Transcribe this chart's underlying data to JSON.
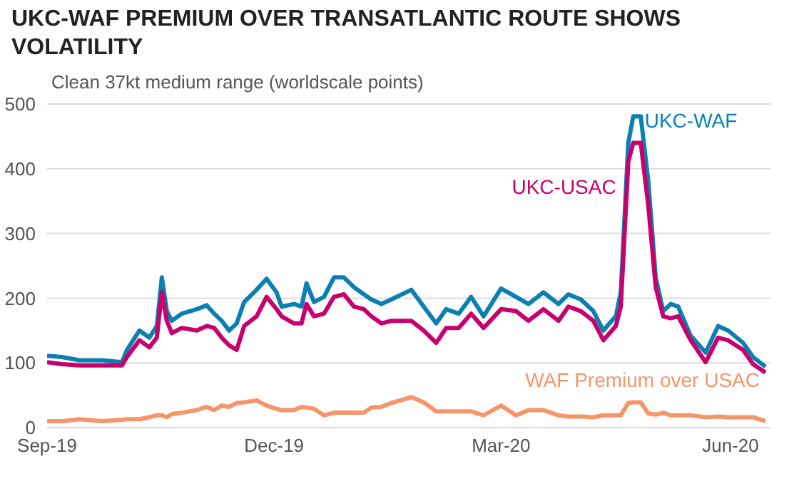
{
  "chart_data": {
    "type": "line",
    "title": "UKC-WAF PREMIUM OVER TRANSATLANTIC ROUTE SHOWS VOLATILITY",
    "subtitle": "Clean 37kt medium range (worldscale points)",
    "x": [
      "2019-09-01",
      "2019-09-07",
      "2019-09-14",
      "2019-09-23",
      "2019-10-01",
      "2019-10-03",
      "2019-10-08",
      "2019-10-12",
      "2019-10-15",
      "2019-10-17",
      "2019-10-19",
      "2019-10-21",
      "2019-10-25",
      "2019-10-31",
      "2019-11-04",
      "2019-11-07",
      "2019-11-10",
      "2019-11-13",
      "2019-11-16",
      "2019-11-19",
      "2019-11-24",
      "2019-11-28",
      "2019-12-02",
      "2019-12-04",
      "2019-12-09",
      "2019-12-12",
      "2019-12-14",
      "2019-12-17",
      "2019-12-21",
      "2019-12-25",
      "2019-12-29",
      "2020-01-02",
      "2020-01-06",
      "2020-01-09",
      "2020-01-13",
      "2020-01-17",
      "2020-01-25",
      "2020-01-30",
      "2020-02-04",
      "2020-02-08",
      "2020-02-13",
      "2020-02-18",
      "2020-02-23",
      "2020-03-01",
      "2020-03-07",
      "2020-03-12",
      "2020-03-18",
      "2020-03-24",
      "2020-03-28",
      "2020-04-02",
      "2020-04-07",
      "2020-04-11",
      "2020-04-16",
      "2020-04-18",
      "2020-04-21",
      "2020-04-23",
      "2020-04-26",
      "2020-04-29",
      "2020-05-02",
      "2020-05-05",
      "2020-05-08",
      "2020-05-11",
      "2020-05-16",
      "2020-05-22",
      "2020-05-27",
      "2020-05-31",
      "2020-06-06",
      "2020-06-10",
      "2020-06-15"
    ],
    "series": [
      {
        "name": "UKC-WAF",
        "color": "#0a80b2",
        "values": [
          111,
          109,
          104,
          104,
          101,
          120,
          150,
          139,
          157,
          232,
          180,
          165,
          176,
          183,
          189,
          176,
          165,
          150,
          161,
          194,
          213,
          230,
          209,
          187,
          191,
          187,
          223,
          194,
          202,
          232,
          232,
          217,
          206,
          198,
          191,
          198,
          213,
          187,
          161,
          183,
          176,
          202,
          172,
          215,
          202,
          191,
          209,
          191,
          206,
          198,
          180,
          150,
          172,
          209,
          440,
          481,
          481,
          381,
          232,
          180,
          191,
          187,
          142,
          116,
          157,
          150,
          131,
          109,
          94
        ]
      },
      {
        "name": "UKC-USAC",
        "color": "#c8006e",
        "values": [
          101,
          98,
          96,
          96,
          96,
          109,
          135,
          124,
          139,
          209,
          165,
          146,
          154,
          150,
          157,
          154,
          139,
          127,
          120,
          157,
          172,
          202,
          183,
          172,
          161,
          161,
          191,
          172,
          176,
          202,
          206,
          187,
          183,
          172,
          161,
          165,
          165,
          150,
          131,
          154,
          154,
          176,
          154,
          183,
          180,
          165,
          183,
          165,
          187,
          180,
          165,
          135,
          157,
          187,
          411,
          440,
          440,
          344,
          217,
          172,
          169,
          172,
          135,
          101,
          139,
          135,
          120,
          98,
          85
        ]
      },
      {
        "name": "WAF Premium over USAC",
        "color": "#f7956a",
        "values": [
          10,
          10,
          13,
          10,
          12,
          13,
          13,
          16,
          19,
          19,
          16,
          21,
          23,
          27,
          32,
          27,
          34,
          32,
          38,
          39,
          42,
          34,
          29,
          27,
          27,
          32,
          31,
          29,
          19,
          23,
          23,
          23,
          23,
          31,
          32,
          38,
          47,
          39,
          25,
          25,
          25,
          25,
          19,
          34,
          19,
          27,
          27,
          19,
          17,
          17,
          16,
          19,
          19,
          19,
          38,
          39,
          39,
          22,
          20,
          23,
          19,
          19,
          19,
          16,
          17,
          16,
          16,
          16,
          10
        ]
      }
    ],
    "xlim": [
      "2019-09-01",
      "2020-06-17"
    ],
    "xticks": [
      {
        "value": "2019-09-01",
        "label": "Sep-19"
      },
      {
        "value": "2019-12-01",
        "label": "Dec-19"
      },
      {
        "value": "2020-03-01",
        "label": "Mar-20"
      },
      {
        "value": "2020-06-01",
        "label": "Jun-20"
      }
    ],
    "ylim": [
      0,
      500
    ],
    "yticks": [
      0,
      100,
      200,
      300,
      400,
      500
    ],
    "grid": "y",
    "legend": false,
    "marker": "none",
    "line_style": "solid"
  }
}
